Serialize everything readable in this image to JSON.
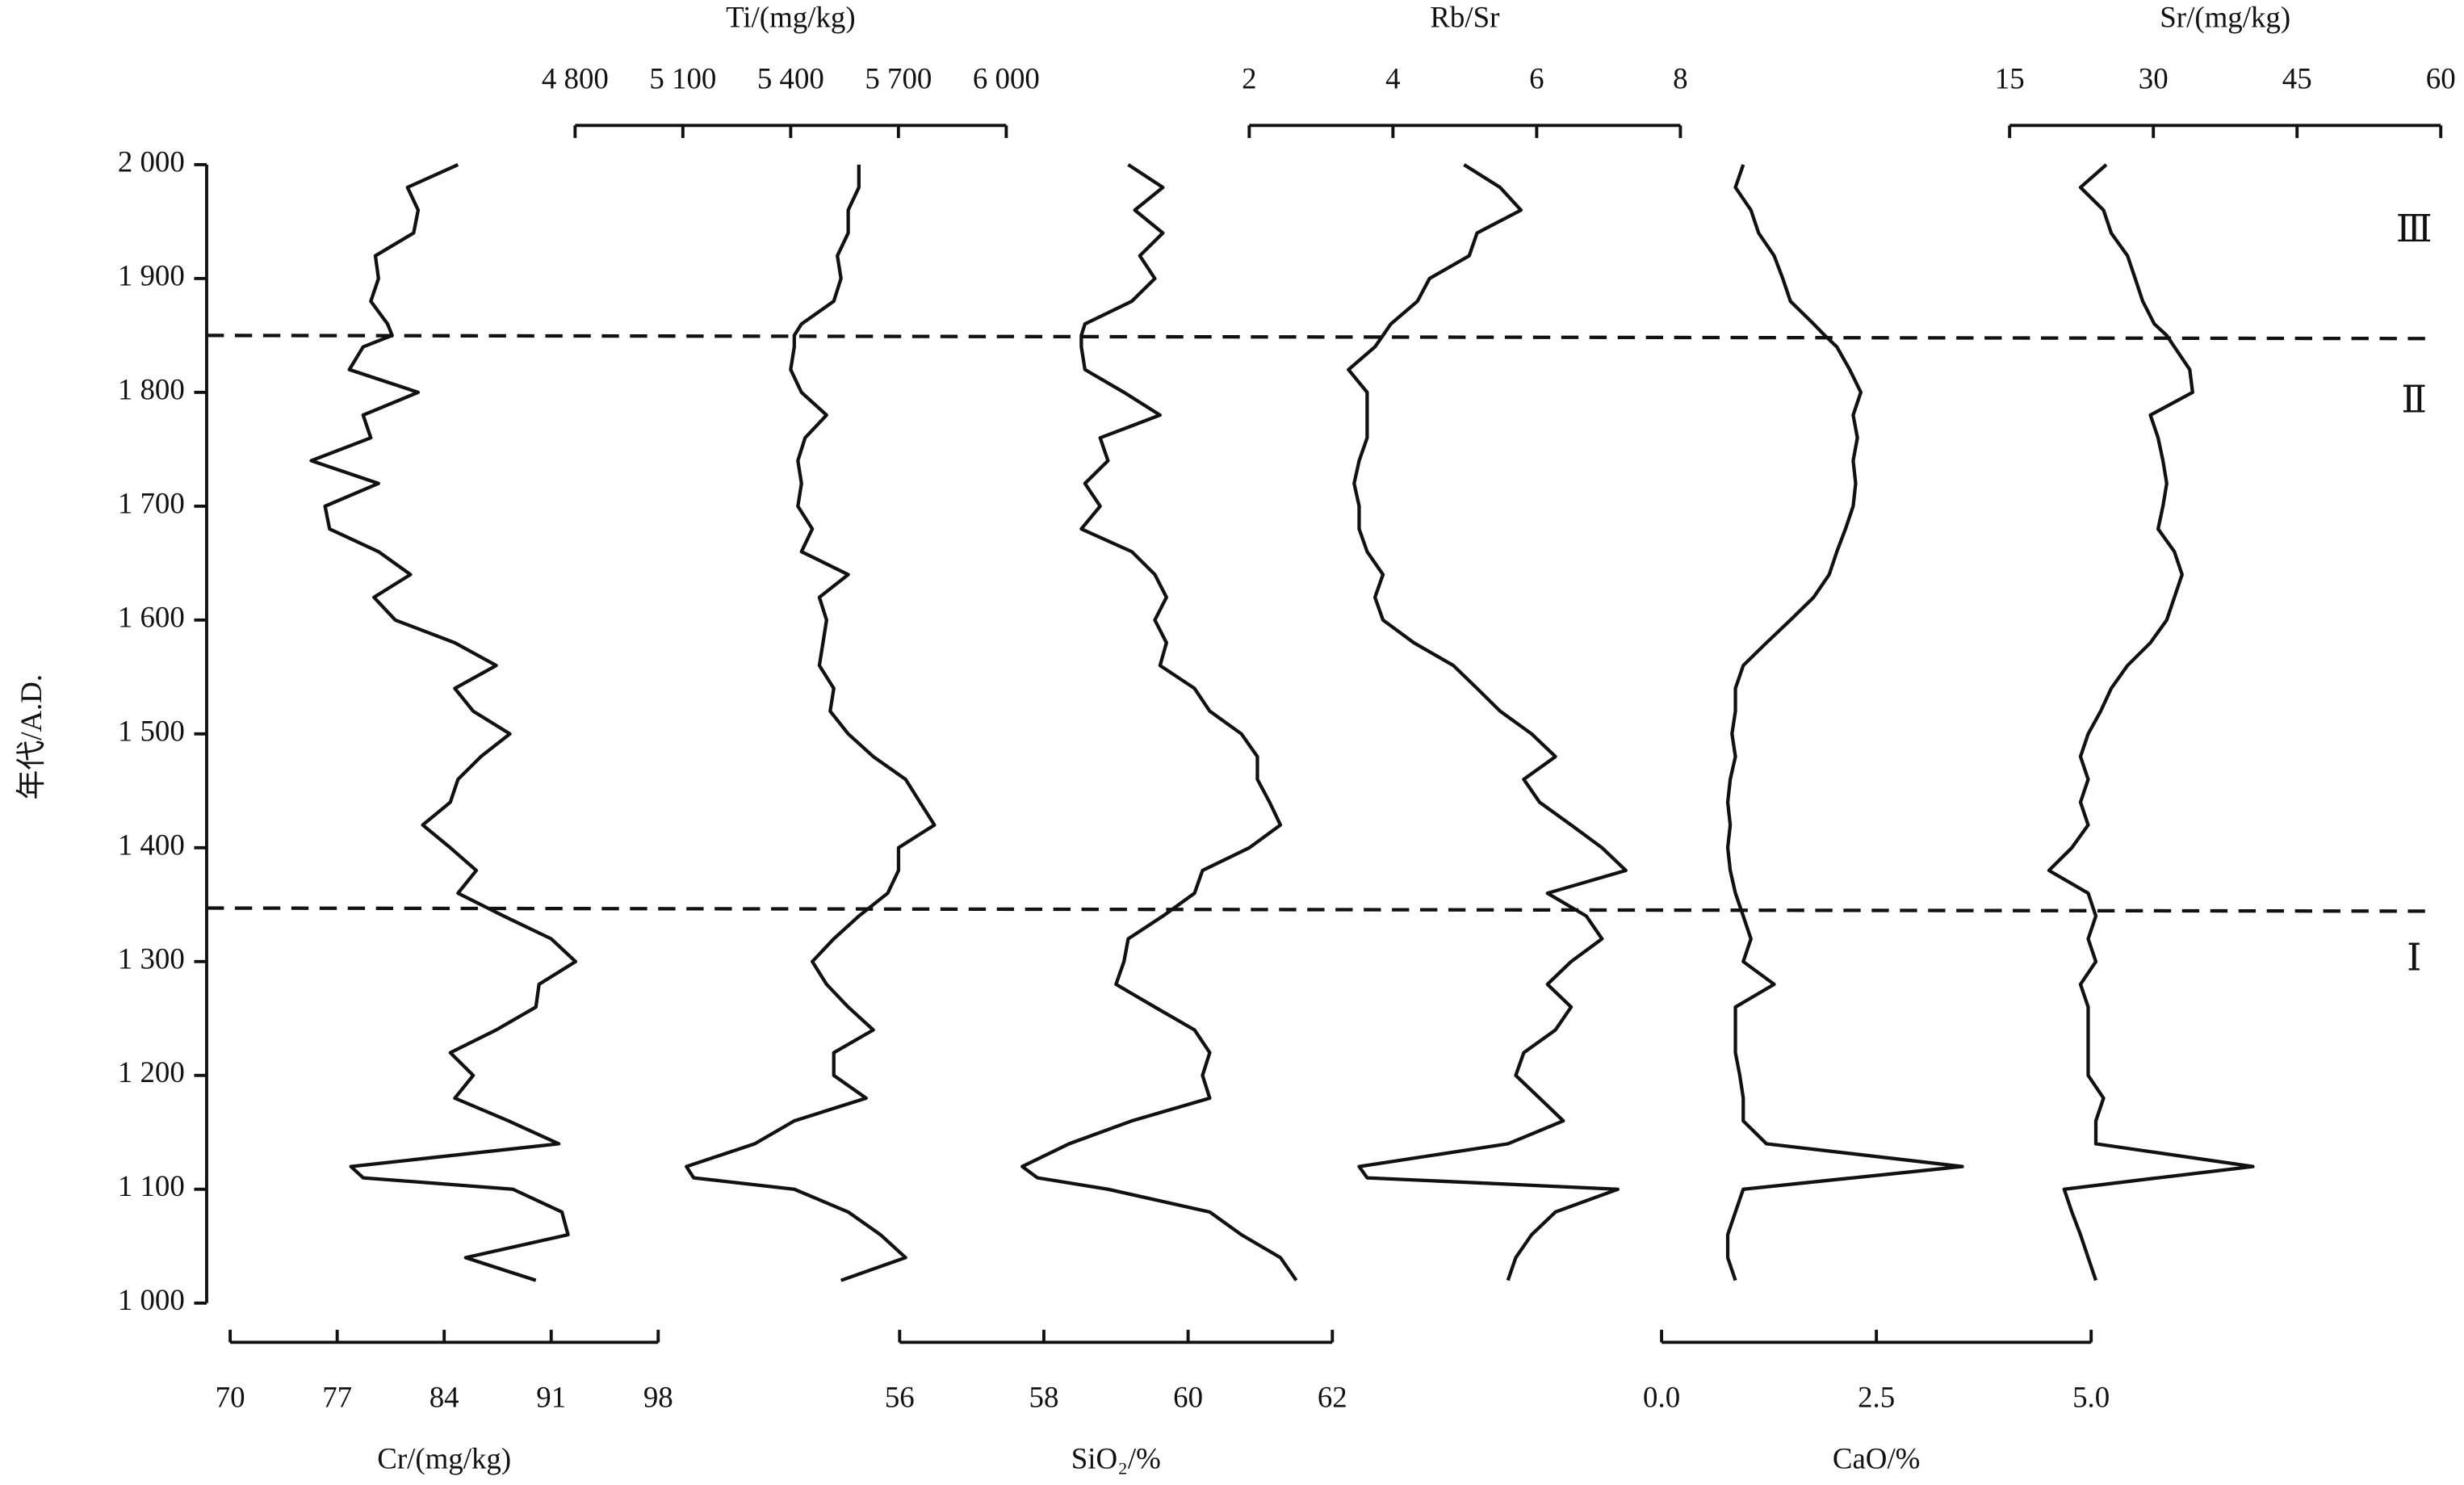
{
  "chart_data": {
    "type": "profile",
    "y_label": "年代/A.D.",
    "ylim": [
      1000,
      2000
    ],
    "yticks": [
      {
        "value": 1000,
        "label": "1 000"
      },
      {
        "value": 1100,
        "label": "1 100"
      },
      {
        "value": 1200,
        "label": "1 200"
      },
      {
        "value": 1300,
        "label": "1 300"
      },
      {
        "value": 1400,
        "label": "1 400"
      },
      {
        "value": 1500,
        "label": "1 500"
      },
      {
        "value": 1600,
        "label": "1 600"
      },
      {
        "value": 1700,
        "label": "1 700"
      },
      {
        "value": 1800,
        "label": "1 800"
      },
      {
        "value": 1900,
        "label": "1 900"
      },
      {
        "value": 2000,
        "label": "2 000"
      }
    ],
    "boundaries": [
      1850,
      1347
    ],
    "zone_labels": [
      "Ⅲ",
      "Ⅱ",
      "Ⅰ"
    ],
    "zone_label_years": [
      1940,
      1790,
      1300
    ],
    "color": "#111111",
    "y": [
      2000,
      1980,
      1960,
      1940,
      1920,
      1900,
      1880,
      1860,
      1850,
      1840,
      1820,
      1800,
      1780,
      1760,
      1740,
      1720,
      1700,
      1680,
      1660,
      1640,
      1620,
      1600,
      1580,
      1560,
      1540,
      1520,
      1500,
      1480,
      1460,
      1440,
      1420,
      1400,
      1380,
      1360,
      1340,
      1320,
      1300,
      1280,
      1260,
      1240,
      1220,
      1200,
      1180,
      1160,
      1140,
      1120,
      1110,
      1100,
      1080,
      1060,
      1040,
      1020
    ],
    "series": [
      {
        "name": "Cr/(mg/kg)",
        "axis": "bottom",
        "xlim": [
          70,
          98
        ],
        "xticks": [
          70,
          77,
          84,
          91,
          98
        ],
        "values": [
          84.9,
          81.6,
          82.3,
          82.0,
          79.5,
          79.7,
          79.2,
          80.3,
          80.6,
          78.7,
          77.8,
          82.3,
          78.7,
          79.2,
          75.3,
          79.7,
          76.2,
          76.5,
          79.7,
          81.8,
          79.4,
          80.8,
          84.7,
          87.4,
          84.7,
          85.9,
          88.3,
          86.4,
          84.9,
          84.4,
          82.6,
          84.4,
          86.1,
          84.9,
          87.9,
          91.0,
          92.6,
          90.2,
          90.0,
          87.4,
          84.4,
          85.9,
          84.7,
          88.2,
          91.5,
          77.9,
          78.7,
          88.5,
          91.7,
          92.1,
          85.4,
          90.0
        ]
      },
      {
        "name": "Ti/(mg/kg)",
        "axis": "top",
        "xlim": [
          4800,
          6000
        ],
        "xticks": [
          {
            "value": 4800,
            "label": "4 800"
          },
          {
            "value": 5100,
            "label": "5 100"
          },
          {
            "value": 5400,
            "label": "5 400"
          },
          {
            "value": 5700,
            "label": "5 700"
          },
          {
            "value": 6000,
            "label": "6 000"
          }
        ],
        "values": [
          5590,
          5590,
          5560,
          5560,
          5530,
          5540,
          5520,
          5430,
          5410,
          5410,
          5400,
          5430,
          5500,
          5440,
          5420,
          5430,
          5420,
          5460,
          5430,
          5560,
          5480,
          5500,
          5490,
          5480,
          5520,
          5510,
          5560,
          5630,
          5720,
          5760,
          5800,
          5700,
          5700,
          5670,
          5590,
          5520,
          5460,
          5500,
          5560,
          5630,
          5520,
          5520,
          5610,
          5410,
          5300,
          5110,
          5130,
          5410,
          5560,
          5650,
          5720,
          5540
        ]
      },
      {
        "name": "SiO₂/%",
        "axis": "bottom",
        "xlim": [
          56,
          62
        ],
        "xticks": [
          56,
          58,
          60,
          62
        ],
        "values": [
          59.17,
          59.65,
          59.26,
          59.65,
          59.33,
          59.54,
          59.22,
          58.57,
          58.52,
          58.52,
          58.57,
          59.11,
          59.61,
          58.78,
          58.89,
          58.57,
          58.78,
          58.52,
          59.22,
          59.54,
          59.7,
          59.54,
          59.7,
          59.61,
          60.09,
          60.3,
          60.74,
          60.96,
          60.96,
          61.13,
          61.28,
          60.85,
          60.2,
          60.09,
          59.65,
          59.17,
          59.11,
          59.0,
          59.54,
          60.09,
          60.3,
          60.2,
          60.3,
          59.22,
          58.35,
          57.7,
          57.91,
          58.89,
          60.3,
          60.74,
          61.28,
          61.5
        ]
      },
      {
        "name": "Rb/Sr",
        "axis": "top",
        "xlim": [
          2,
          8
        ],
        "xticks": [
          2,
          4,
          6,
          8
        ],
        "values": [
          4.99,
          5.49,
          5.78,
          5.17,
          5.06,
          4.51,
          4.34,
          3.97,
          3.86,
          3.75,
          3.38,
          3.64,
          3.64,
          3.64,
          3.53,
          3.46,
          3.53,
          3.53,
          3.64,
          3.86,
          3.75,
          3.86,
          4.29,
          4.84,
          5.17,
          5.49,
          5.93,
          6.26,
          5.82,
          6.04,
          6.48,
          6.91,
          7.24,
          6.15,
          6.69,
          6.91,
          6.48,
          6.15,
          6.48,
          6.26,
          5.82,
          5.71,
          6.04,
          6.37,
          5.6,
          3.53,
          3.64,
          7.13,
          6.26,
          5.93,
          5.71,
          5.6
        ]
      },
      {
        "name": "CaO/%",
        "axis": "bottom",
        "xlim": [
          0,
          5
        ],
        "xticks": [
          {
            "value": 0,
            "label": "0.0"
          },
          2.5,
          {
            "value": 5,
            "label": "5.0"
          }
        ],
        "values": [
          0.95,
          0.86,
          1.04,
          1.13,
          1.31,
          1.41,
          1.5,
          1.77,
          1.9,
          2.04,
          2.19,
          2.32,
          2.23,
          2.28,
          2.23,
          2.26,
          2.23,
          2.14,
          2.04,
          1.95,
          1.77,
          1.5,
          1.22,
          0.95,
          0.86,
          0.86,
          0.82,
          0.86,
          0.8,
          0.77,
          0.8,
          0.77,
          0.8,
          0.86,
          0.95,
          1.04,
          0.95,
          1.31,
          0.86,
          0.86,
          0.86,
          0.91,
          0.95,
          0.95,
          1.22,
          3.5,
          2.23,
          0.95,
          0.86,
          0.77,
          0.77,
          0.86
        ]
      },
      {
        "name": "Sr/(mg/kg)",
        "axis": "top",
        "xlim": [
          15,
          60
        ],
        "xticks": [
          15,
          30,
          45,
          60
        ],
        "values": [
          25.1,
          22.4,
          24.8,
          25.6,
          27.3,
          28.1,
          28.9,
          30.1,
          31.4,
          32.2,
          33.8,
          34.1,
          29.7,
          30.5,
          31.0,
          31.4,
          31.0,
          30.5,
          32.2,
          33.0,
          32.2,
          31.4,
          29.7,
          27.3,
          25.6,
          24.5,
          23.2,
          22.4,
          23.2,
          22.4,
          23.2,
          21.5,
          19.1,
          23.2,
          24.0,
          23.2,
          24.0,
          22.4,
          23.2,
          23.2,
          23.2,
          23.2,
          24.8,
          24.0,
          24.0,
          40.4,
          30.5,
          20.7,
          21.5,
          22.4,
          23.2,
          24.0
        ]
      }
    ]
  }
}
